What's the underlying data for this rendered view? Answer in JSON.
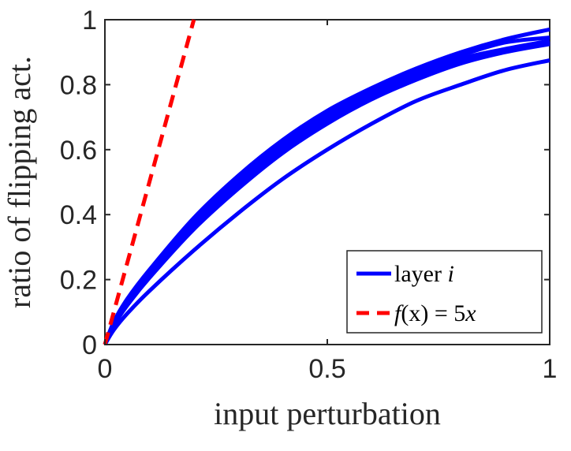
{
  "chart_data": {
    "type": "line",
    "xlabel": "input perturbation",
    "ylabel": "ratio of flipping act.",
    "xlim": [
      0,
      1
    ],
    "ylim": [
      0,
      1
    ],
    "x_ticks": [
      "0",
      "0.5",
      "1"
    ],
    "y_ticks": [
      "0",
      "0.2",
      "0.4",
      "0.6",
      "0.8",
      "1"
    ],
    "grid": false,
    "legend_position": "bottom-right",
    "colors": {
      "layers": "#0000ff",
      "reference": "#ff0000",
      "axes": "#262626"
    },
    "series": [
      {
        "name": "layer i",
        "style": "solid",
        "x": [
          0,
          0.02,
          0.05,
          0.1,
          0.2,
          0.3,
          0.4,
          0.5,
          0.6,
          0.7,
          0.8,
          0.9,
          1.0
        ],
        "y": [
          0,
          0.07,
          0.14,
          0.23,
          0.39,
          0.52,
          0.63,
          0.72,
          0.79,
          0.85,
          0.9,
          0.94,
          0.97
        ]
      },
      {
        "style": "solid",
        "x": [
          0,
          0.02,
          0.05,
          0.1,
          0.2,
          0.3,
          0.4,
          0.5,
          0.6,
          0.7,
          0.8,
          0.9,
          1.0
        ],
        "y": [
          0,
          0.065,
          0.135,
          0.225,
          0.385,
          0.51,
          0.62,
          0.71,
          0.78,
          0.84,
          0.89,
          0.93,
          0.945
        ]
      },
      {
        "style": "solid",
        "x": [
          0,
          0.02,
          0.05,
          0.1,
          0.2,
          0.3,
          0.4,
          0.5,
          0.6,
          0.7,
          0.8,
          0.9,
          1.0
        ],
        "y": [
          0,
          0.063,
          0.13,
          0.22,
          0.375,
          0.5,
          0.61,
          0.7,
          0.77,
          0.83,
          0.88,
          0.91,
          0.935
        ]
      },
      {
        "style": "solid",
        "x": [
          0,
          0.02,
          0.05,
          0.1,
          0.2,
          0.3,
          0.4,
          0.5,
          0.6,
          0.7,
          0.8,
          0.9,
          1.0
        ],
        "y": [
          0,
          0.06,
          0.125,
          0.21,
          0.365,
          0.49,
          0.6,
          0.69,
          0.765,
          0.82,
          0.87,
          0.905,
          0.93
        ]
      },
      {
        "style": "solid",
        "x": [
          0,
          0.02,
          0.05,
          0.1,
          0.2,
          0.3,
          0.4,
          0.5,
          0.6,
          0.7,
          0.8,
          0.9,
          1.0
        ],
        "y": [
          0,
          0.058,
          0.12,
          0.205,
          0.355,
          0.48,
          0.59,
          0.68,
          0.755,
          0.815,
          0.865,
          0.9,
          0.925
        ]
      },
      {
        "style": "solid",
        "x": [
          0,
          0.02,
          0.05,
          0.1,
          0.2,
          0.3,
          0.4,
          0.5,
          0.6,
          0.7,
          0.8,
          0.9,
          1.0
        ],
        "y": [
          0,
          0.045,
          0.095,
          0.165,
          0.29,
          0.405,
          0.51,
          0.6,
          0.68,
          0.75,
          0.8,
          0.845,
          0.875
        ]
      },
      {
        "name": "f(x) = 5x",
        "style": "dashed",
        "x": [
          0,
          0.2
        ],
        "y": [
          0,
          1.0
        ]
      }
    ],
    "legend": [
      {
        "label_text": "layer ",
        "label_math": "i"
      },
      {
        "label_math_f": "f",
        "label_paren": "(x)",
        "label_eq": " = 5",
        "label_math_x": "x"
      }
    ]
  }
}
